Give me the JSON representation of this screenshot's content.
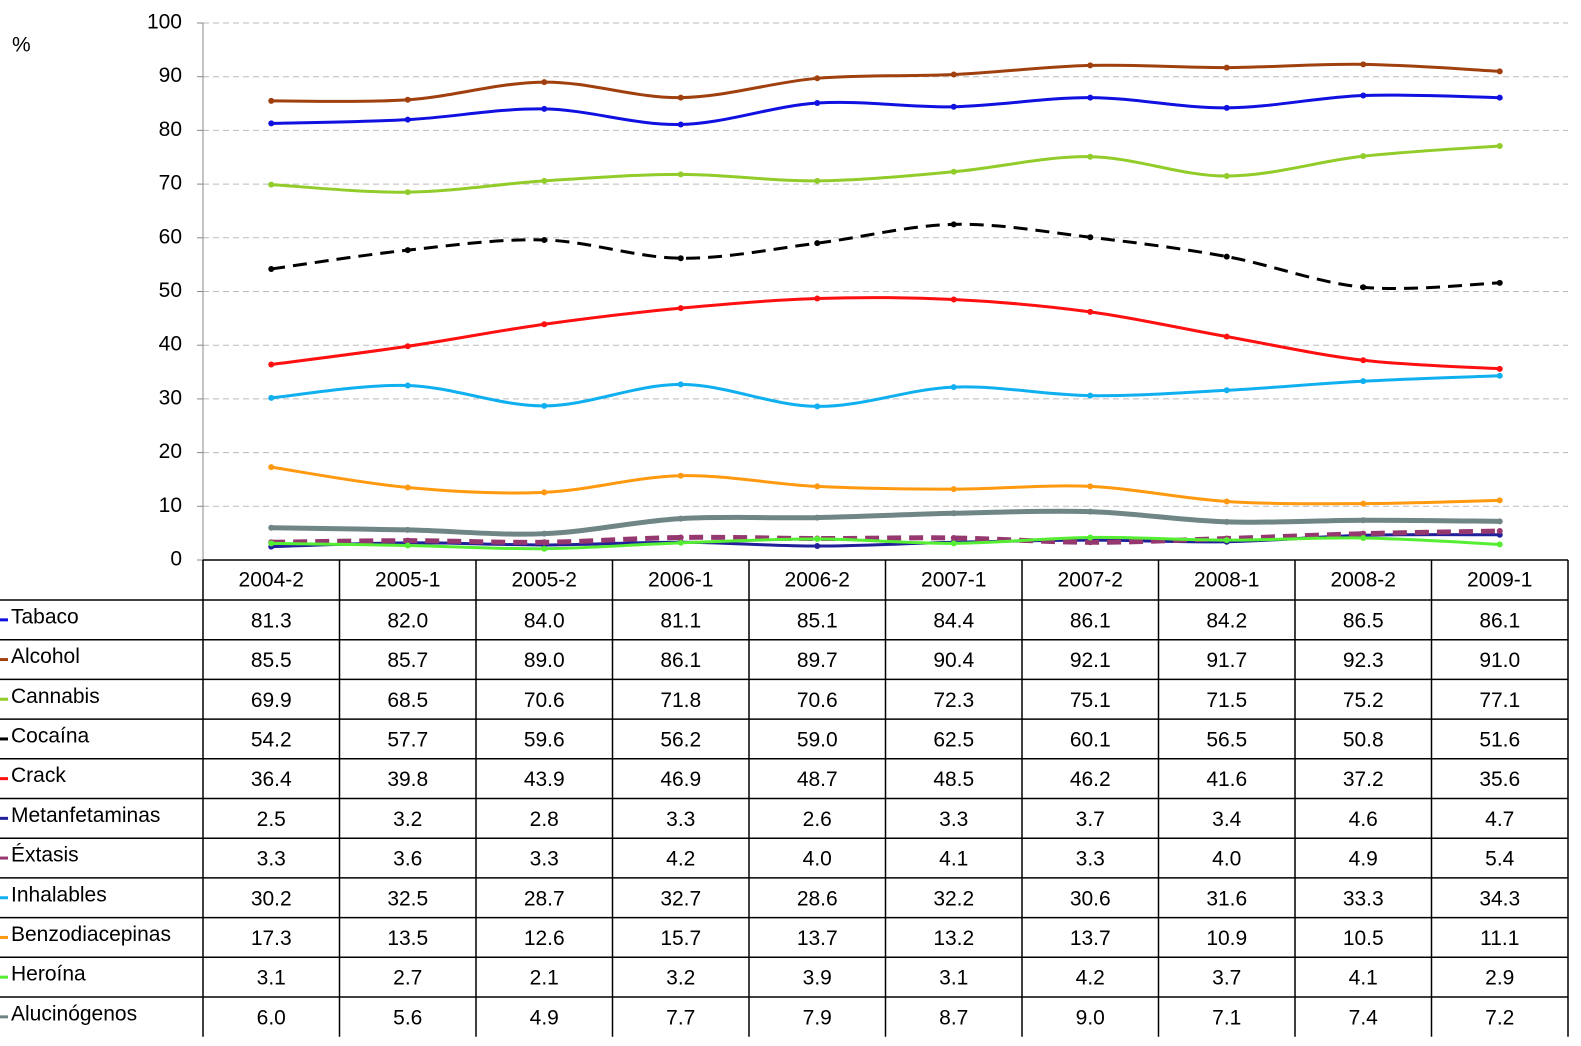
{
  "chart_data": {
    "type": "line",
    "y_label": "%",
    "categories": [
      "2004-2",
      "2005-1",
      "2005-2",
      "2006-1",
      "2006-2",
      "2007-1",
      "2007-2",
      "2008-1",
      "2008-2",
      "2009-1"
    ],
    "ylim": [
      0,
      100
    ],
    "yticks": [
      0,
      10,
      20,
      30,
      40,
      50,
      60,
      70,
      80,
      90,
      100
    ],
    "grid": true,
    "smooth": true,
    "data_table": true,
    "series": [
      {
        "name": "Tabaco",
        "color": "#1010e0",
        "width": 3,
        "values": [
          81.3,
          82.0,
          84.0,
          81.1,
          85.1,
          84.4,
          86.1,
          84.2,
          86.5,
          86.1
        ],
        "value_labels": [
          "81.3",
          "82.0",
          "84.0",
          "81.1",
          "85.1",
          "84.4",
          "86.1",
          "84.2",
          "86.5",
          "86.1"
        ]
      },
      {
        "name": "Alcohol",
        "color": "#a0400f",
        "width": 3,
        "values": [
          85.5,
          85.7,
          89.0,
          86.1,
          89.7,
          90.4,
          92.1,
          91.7,
          92.3,
          91.0
        ],
        "value_labels": [
          "85.5",
          "85.7",
          "89.0",
          "86.1",
          "89.7",
          "90.4",
          "92.1",
          "91.7",
          "92.3",
          "91.0"
        ]
      },
      {
        "name": "Cannabis",
        "color": "#92cc2a",
        "width": 3,
        "values": [
          69.9,
          68.5,
          70.6,
          71.8,
          70.6,
          72.3,
          75.1,
          71.5,
          75.2,
          77.1
        ],
        "value_labels": [
          "69.9",
          "68.5",
          "70.6",
          "71.8",
          "70.6",
          "72.3",
          "75.1",
          "71.5",
          "75.2",
          "77.1"
        ]
      },
      {
        "name": "Cocaína",
        "color": "#000000",
        "width": 3,
        "dashed": true,
        "values": [
          54.2,
          57.7,
          59.6,
          56.2,
          59.0,
          62.5,
          60.1,
          56.5,
          50.8,
          51.6
        ],
        "value_labels": [
          "54.2",
          "57.7",
          "59.6",
          "56.2",
          "59.0",
          "62.5",
          "60.1",
          "56.5",
          "50.8",
          "51.6"
        ]
      },
      {
        "name": "Crack",
        "color": "#ff1010",
        "width": 3,
        "values": [
          36.4,
          39.8,
          43.9,
          46.9,
          48.7,
          48.5,
          46.2,
          41.6,
          37.2,
          35.6
        ],
        "value_labels": [
          "36.4",
          "39.8",
          "43.9",
          "46.9",
          "48.7",
          "48.5",
          "46.2",
          "41.6",
          "37.2",
          "35.6"
        ]
      },
      {
        "name": "Metanfetaminas",
        "color": "#20209a",
        "width": 3,
        "values": [
          2.5,
          3.2,
          2.8,
          3.3,
          2.6,
          3.3,
          3.7,
          3.4,
          4.6,
          4.7
        ],
        "value_labels": [
          "2.5",
          "3.2",
          "2.8",
          "3.3",
          "2.6",
          "3.3",
          "3.7",
          "3.4",
          "4.6",
          "4.7"
        ]
      },
      {
        "name": "Éxtasis",
        "color": "#953870",
        "width": 5,
        "dashed": true,
        "values": [
          3.3,
          3.6,
          3.3,
          4.2,
          4.0,
          4.1,
          3.3,
          4.0,
          4.9,
          5.4
        ],
        "value_labels": [
          "3.3",
          "3.6",
          "3.3",
          "4.2",
          "4.0",
          "4.1",
          "3.3",
          "4.0",
          "4.9",
          "5.4"
        ]
      },
      {
        "name": "Inhalables",
        "color": "#10b0f0",
        "width": 3,
        "values": [
          30.2,
          32.5,
          28.7,
          32.7,
          28.6,
          32.2,
          30.6,
          31.6,
          33.3,
          34.3
        ],
        "value_labels": [
          "30.2",
          "32.5",
          "28.7",
          "32.7",
          "28.6",
          "32.2",
          "30.6",
          "31.6",
          "33.3",
          "34.3"
        ]
      },
      {
        "name": "Benzodiacepinas",
        "color": "#ff9910",
        "width": 3,
        "values": [
          17.3,
          13.5,
          12.6,
          15.7,
          13.7,
          13.2,
          13.7,
          10.9,
          10.5,
          11.1
        ],
        "value_labels": [
          "17.3",
          "13.5",
          "12.6",
          "15.7",
          "13.7",
          "13.2",
          "13.7",
          "10.9",
          "10.5",
          "11.1"
        ]
      },
      {
        "name": "Heroína",
        "color": "#55ee33",
        "width": 3,
        "values": [
          3.1,
          2.7,
          2.1,
          3.2,
          3.9,
          3.1,
          4.2,
          3.7,
          4.1,
          2.9
        ],
        "value_labels": [
          "3.1",
          "2.7",
          "2.1",
          "3.2",
          "3.9",
          "3.1",
          "4.2",
          "3.7",
          "4.1",
          "2.9"
        ]
      },
      {
        "name": "Alucinógenos",
        "color": "#708585",
        "width": 5,
        "values": [
          6.0,
          5.6,
          4.9,
          7.7,
          7.9,
          8.7,
          9.0,
          7.1,
          7.4,
          7.2
        ],
        "value_labels": [
          "6.0",
          "5.6",
          "4.9",
          "7.7",
          "7.9",
          "8.7",
          "9.0",
          "7.1",
          "7.4",
          "7.2"
        ]
      }
    ]
  }
}
